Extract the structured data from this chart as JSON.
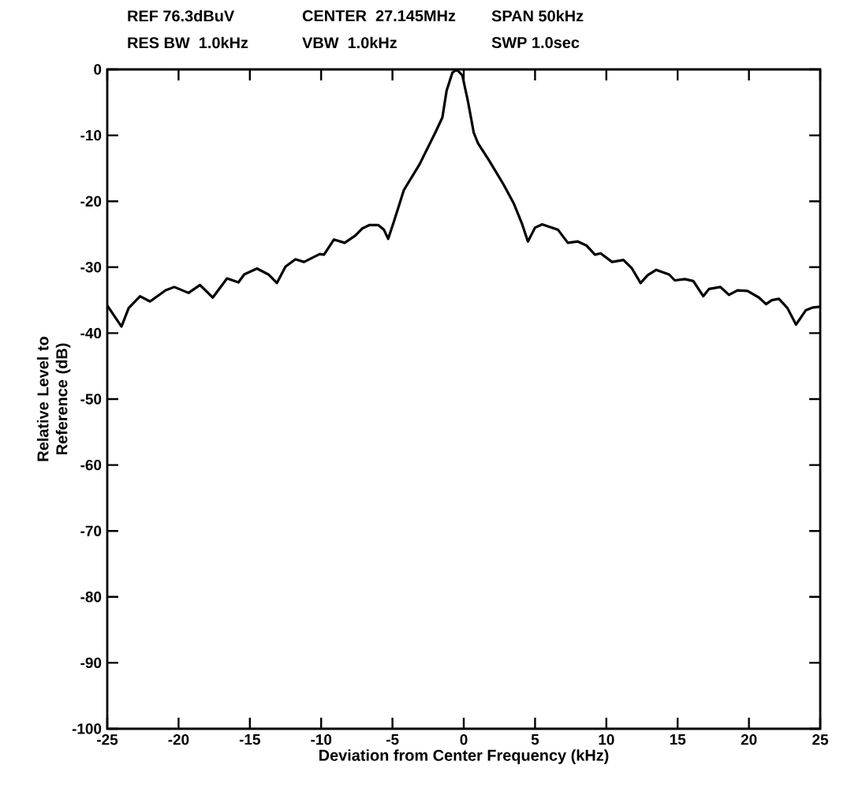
{
  "chart_data": {
    "type": "line",
    "xlabel": "Deviation from Center Frequency (kHz)",
    "ylabel": "Relative Level to Reference (dB)",
    "annotations": [
      "REF 76.3dBuV",
      "CENTER  27.145MHz",
      "SPAN 50kHz",
      "RES BW   1.0kHz",
      "VBW   1.0kHz",
      "SWP 1.0sec"
    ],
    "series": [
      {
        "color": "#000000",
        "x": [
          -25.0,
          -24.0,
          -23.5,
          -22.7,
          -22.0,
          -20.9,
          -20.3,
          -19.3,
          -18.5,
          -17.6,
          -16.6,
          -15.8,
          -15.4,
          -14.5,
          -13.7,
          -13.1,
          -12.5,
          -11.8,
          -11.2,
          -10.1,
          -9.8,
          -9.1,
          -8.35,
          -7.6,
          -7.1,
          -6.6,
          -6.0,
          -5.6,
          -5.3,
          -4.9,
          -4.2,
          -3.1,
          -2.0,
          -1.5,
          -1.2,
          -0.8,
          -0.5,
          -0.1,
          0.3,
          0.7,
          1.0,
          1.8,
          2.8,
          3.5,
          4.1,
          4.5,
          5.0,
          5.5,
          6.6,
          7.3,
          8.0,
          8.6,
          9.2,
          9.6,
          10.4,
          11.2,
          11.8,
          12.4,
          12.9,
          13.5,
          14.4,
          14.8,
          15.5,
          16.1,
          16.8,
          17.2,
          18.0,
          18.6,
          19.2,
          19.9,
          20.7,
          21.2,
          21.6,
          22.1,
          22.7,
          23.3,
          24.0,
          24.5,
          25.0
        ],
        "values": [
          -35.8,
          -39.0,
          -36.2,
          -34.4,
          -35.2,
          -33.5,
          -33.0,
          -33.9,
          -32.7,
          -34.6,
          -31.7,
          -32.3,
          -31.1,
          -30.2,
          -31.1,
          -32.4,
          -29.9,
          -28.8,
          -29.2,
          -28.0,
          -28.1,
          -25.8,
          -26.3,
          -25.2,
          -24.1,
          -23.6,
          -23.6,
          -24.3,
          -25.7,
          -23.1,
          -18.3,
          -14.4,
          -9.6,
          -7.3,
          -3.2,
          -0.5,
          0.0,
          -0.9,
          -4.9,
          -9.6,
          -11.2,
          -13.9,
          -17.5,
          -20.3,
          -23.5,
          -26.1,
          -24.0,
          -23.5,
          -24.3,
          -26.3,
          -26.1,
          -26.7,
          -28.1,
          -27.9,
          -29.2,
          -28.9,
          -30.2,
          -32.4,
          -31.2,
          -30.4,
          -31.1,
          -32.0,
          -31.8,
          -32.1,
          -34.4,
          -33.3,
          -33.0,
          -34.2,
          -33.5,
          -33.6,
          -34.6,
          -35.6,
          -35.0,
          -34.8,
          -36.2,
          -38.7,
          -36.5,
          -36.1,
          -36.0
        ]
      }
    ],
    "xlim": [
      -25,
      25
    ],
    "xticks": [
      -25,
      -20,
      -15,
      -10,
      -5,
      0,
      5,
      10,
      15,
      20,
      25
    ],
    "ylim": [
      -100,
      0
    ],
    "yticks": [
      -100,
      -90,
      -80,
      -70,
      -60,
      -50,
      -40,
      -30,
      -20,
      -10,
      0
    ],
    "grid": false,
    "marker": "none",
    "line_style": "solid"
  }
}
